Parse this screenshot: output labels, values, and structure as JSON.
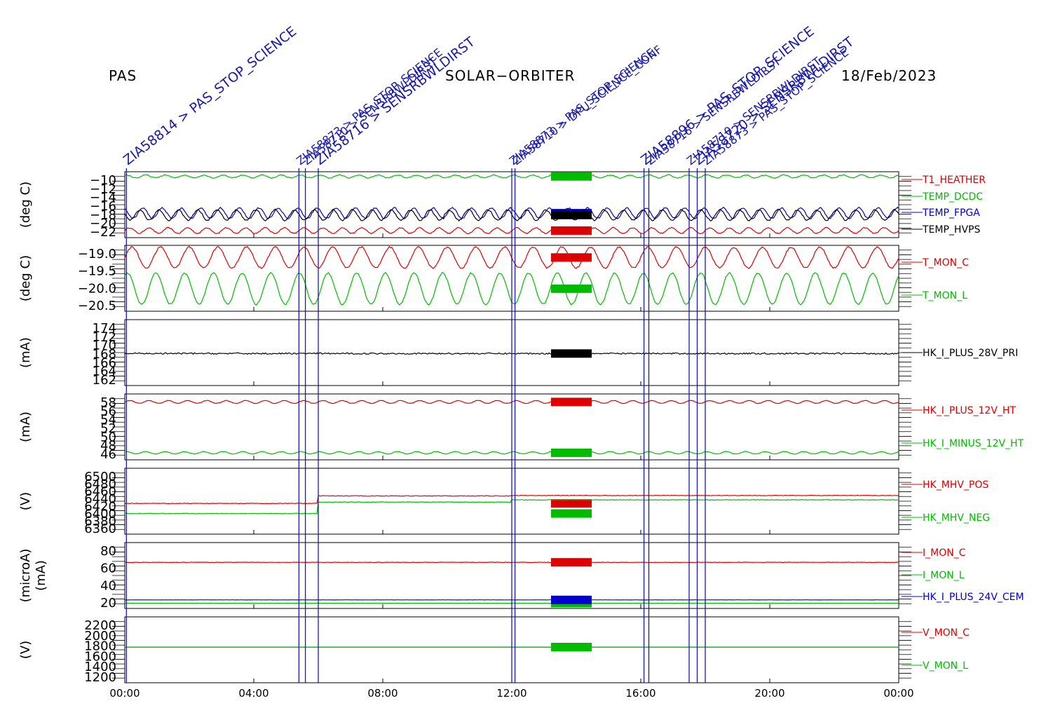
{
  "header": {
    "left": "PAS",
    "center": "SOLAR−ORBITER",
    "right": "18/Feb/2023"
  },
  "colors": {
    "red": "#dd0000",
    "green": "#00bb00",
    "blue": "#0000cc",
    "black": "#000000",
    "event": "#1a1aaa"
  },
  "chart_data": {
    "type": "line",
    "x_ticks": [
      "00:00",
      "04:00",
      "08:00",
      "12:00",
      "16:00",
      "20:00",
      "00:00"
    ],
    "x_range_hours": [
      0,
      24
    ],
    "events": {
      "times_hours": [
        0.05,
        5.4,
        5.6,
        6.0,
        12.0,
        12.1,
        16.1,
        16.25,
        17.5,
        17.75,
        18.0
      ],
      "labels": [
        "ZIA58814 > PAS_STOP_SCIENCE",
        "ZIA58873 > PAS_STOP_SCIENCE",
        "ZIA58710 > SENSRBWLDIRST",
        "ZIA58716 > SENSRBWLDIRST",
        "ZIA58873 > PAS_STOP_SCIENCE",
        "ZIA58710 > DPU_SCIENCE_CONF",
        "ZIA58896 > PAS_STOP_SCIENCE",
        "ZIA58716 > SENSRBWLDIRST",
        "ZIA58710 > SENSRBWLDIRST",
        "ZIA58720 > SENSRBWLDIRST",
        "ZIA58873 > PAS_STOP_SCIENCE"
      ]
    },
    "panels": [
      {
        "ylabel": "(deg C)",
        "yticks": [
          "−10",
          "−12",
          "−14",
          "−16",
          "−18",
          "−20",
          "−22"
        ],
        "ylim": [
          -23,
          -9
        ],
        "series": [
          {
            "name": "T1_HEATHER",
            "color": "red",
            "base": -21.5,
            "amp": 0.6,
            "cycles": 40,
            "noise": 0.1
          },
          {
            "name": "TEMP_DCDC",
            "color": "green",
            "base": -10,
            "amp": 0.3,
            "cycles": 40,
            "noise": 0.1
          },
          {
            "name": "TEMP_FPGA",
            "color": "blue",
            "base": -17.8,
            "amp": 1.1,
            "cycles": 40,
            "noise": 0.15
          },
          {
            "name": "TEMP_HVPS",
            "color": "black",
            "base": -18.2,
            "amp": 1.1,
            "cycles": 40,
            "noise": 0.15
          }
        ]
      },
      {
        "ylabel": "(deg C)",
        "yticks": [
          "−19.0",
          "−19.5",
          "−20.0",
          "−20.5"
        ],
        "ylim": [
          -20.7,
          -18.8
        ],
        "series": [
          {
            "name": "T_MON_C",
            "color": "red",
            "base": -19.15,
            "amp": 0.3,
            "cycles": 27,
            "noise": 0.02
          },
          {
            "name": "T_MON_L",
            "color": "green",
            "base": -20.05,
            "amp": 0.45,
            "cycles": 27,
            "noise": 0.02
          }
        ]
      },
      {
        "ylabel": "(mA)",
        "yticks": [
          "174",
          "172",
          "170",
          "168",
          "166",
          "164",
          "162"
        ],
        "ylim": [
          161,
          175
        ],
        "series": [
          {
            "name": "HK_I_PLUS_28V_PRI",
            "color": "black",
            "base": 167.8,
            "amp": 0,
            "cycles": 0,
            "noise": 0.15
          }
        ]
      },
      {
        "ylabel": "(mA)",
        "yticks": [
          "58",
          "56",
          "54",
          "52",
          "50",
          "48",
          "46"
        ],
        "ylim": [
          45,
          59
        ],
        "series": [
          {
            "name": "HK_I_PLUS_12V_HT",
            "color": "red",
            "base": 57.3,
            "amp": 0.3,
            "cycles": 40,
            "noise": 0.05
          },
          {
            "name": "HK_I_MINUS_12V_HT",
            "color": "green",
            "base": 46.5,
            "amp": 0.25,
            "cycles": 40,
            "noise": 0.05
          }
        ]
      },
      {
        "ylabel": "(V)",
        "yticks": [
          "6500",
          "6480",
          "6460",
          "6440",
          "6420",
          "6400",
          "6380",
          "6360"
        ],
        "ylim": [
          6355,
          6505
        ],
        "series": [
          {
            "name": "HK_MHV_POS",
            "color": "red",
            "base": 6425,
            "amp": 0,
            "cycles": 0,
            "noise": 0.6,
            "step_hours": [
              6.0,
              12.0
            ],
            "step_values": [
              6425,
              6442,
              6443
            ]
          },
          {
            "name": "HK_MHV_NEG",
            "color": "green",
            "base": 6402,
            "amp": 0,
            "cycles": 0,
            "noise": 0.6,
            "step_hours": [
              6.0,
              12.0
            ],
            "step_values": [
              6402,
              6428,
              6433
            ]
          }
        ]
      },
      {
        "ylabel": "(microA)",
        "ylabel2": "(mA)",
        "yticks": [
          "80",
          "60",
          "40",
          "20"
        ],
        "ylim": [
          0,
          100
        ],
        "series": [
          {
            "name": "I_MON_C",
            "color": "red",
            "base": 70,
            "amp": 0,
            "cycles": 0,
            "noise": 0.3
          },
          {
            "name": "I_MON_L",
            "color": "green",
            "base": 8,
            "amp": 0,
            "cycles": 0,
            "noise": 0
          },
          {
            "name": "HK_I_PLUS_24V_CEM",
            "color": "blue",
            "base": 13,
            "amp": 0,
            "cycles": 0,
            "noise": 0.1
          }
        ]
      },
      {
        "ylabel": "(V)",
        "yticks": [
          "2200",
          "2000",
          "1800",
          "1600",
          "1400",
          "1200"
        ],
        "ylim": [
          1150,
          2350
        ],
        "series": [
          {
            "name": "V_MON_C",
            "color": "red",
            "base": 1800,
            "amp": 0,
            "cycles": 0,
            "noise": 0
          },
          {
            "name": "V_MON_L",
            "color": "green",
            "base": 1800,
            "amp": 0,
            "cycles": 0,
            "noise": 0
          }
        ]
      }
    ]
  }
}
